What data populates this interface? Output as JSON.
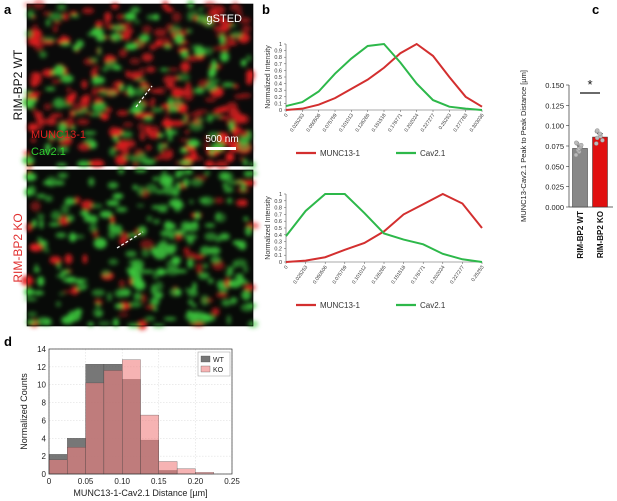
{
  "panels": {
    "a": {
      "letter": "a",
      "mode_label": "gSTED",
      "wt_label": "RIM-BP2 WT",
      "ko_label": "RIM-BP2 KO",
      "channel1": "MUNC13-1",
      "channel2": "Cav2.1",
      "scalebar": "500 nm",
      "colors": {
        "munc": "#e02020",
        "cav": "#32cd32",
        "ko_label": "#e03030"
      }
    },
    "b": {
      "letter": "b"
    },
    "c": {
      "letter": "c"
    },
    "d": {
      "letter": "d"
    }
  },
  "chart_data": [
    {
      "id": "b-top",
      "type": "line",
      "ylabel": "Normalized Intensity",
      "x": [
        "0",
        "0.025253",
        "0.050506",
        "0.075759",
        "0.101013",
        "0.126265",
        "0.151518",
        "0.176771",
        "0.202024",
        "0.227277",
        "0.25253",
        "0.277783",
        "0.303036"
      ],
      "ylim": [
        0,
        1
      ],
      "yticks": [
        "0",
        "0.1",
        "0.2",
        "0.3",
        "0.4",
        "0.5",
        "0.6",
        "0.7",
        "0.8",
        "0.9",
        "1"
      ],
      "series": [
        {
          "name": "MUNC13-1",
          "color": "#d32f2f",
          "values": [
            0,
            0.02,
            0.08,
            0.18,
            0.32,
            0.46,
            0.64,
            0.86,
            1.0,
            0.82,
            0.5,
            0.2,
            0.05
          ]
        },
        {
          "name": "Cav2.1",
          "color": "#2db84a",
          "values": [
            0.06,
            0.12,
            0.28,
            0.55,
            0.78,
            0.97,
            1.0,
            0.72,
            0.4,
            0.15,
            0.05,
            0.02,
            0
          ]
        }
      ],
      "legend": "bottom"
    },
    {
      "id": "b-bottom",
      "type": "line",
      "ylabel": "Normalized Intensity",
      "x": [
        "0",
        "0.025253",
        "0.050506",
        "0.075759",
        "0.101012",
        "0.126265",
        "0.151518",
        "0.176771",
        "0.202024",
        "0.227277",
        "0.25253"
      ],
      "ylim": [
        0,
        1
      ],
      "yticks": [
        "0",
        "0.1",
        "0.2",
        "0.3",
        "0.4",
        "0.5",
        "0.6",
        "0.7",
        "0.8",
        "0.9",
        "1"
      ],
      "series": [
        {
          "name": "MUNC13-1",
          "color": "#d32f2f",
          "values": [
            0,
            0.02,
            0.07,
            0.18,
            0.28,
            0.45,
            0.7,
            0.85,
            1.0,
            0.86,
            0.5
          ]
        },
        {
          "name": "Cav2.1",
          "color": "#2db84a",
          "values": [
            0.38,
            0.75,
            1.0,
            1.0,
            0.72,
            0.42,
            0.33,
            0.26,
            0.12,
            0.04,
            0
          ]
        }
      ],
      "legend": "bottom"
    },
    {
      "id": "c",
      "type": "bar",
      "ylabel": "MUNC13-Cav2.1 Peak to Peak Distance [µm]",
      "categories": [
        "RIM-BP2 WT",
        "RIM-BP2 KO"
      ],
      "values": [
        0.072,
        0.086
      ],
      "errors": [
        0.003,
        0.004
      ],
      "colors": [
        "#888888",
        "#e01010"
      ],
      "ylim": [
        0,
        0.15
      ],
      "yticks": [
        "0.000",
        "0.025",
        "0.050",
        "0.075",
        "0.100",
        "0.125",
        "0.150"
      ],
      "points": [
        [
          0.064,
          0.068,
          0.07,
          0.072,
          0.074,
          0.076,
          0.078,
          0.079
        ],
        [
          0.078,
          0.082,
          0.085,
          0.087,
          0.09,
          0.093,
          0.094
        ]
      ],
      "annotation": "*"
    },
    {
      "id": "d",
      "type": "bar",
      "subtype": "histogram",
      "xlabel": "MUNC13-1-Cav2.1 Distance [µm]",
      "ylabel": "Normalized Counts",
      "bin_edges": [
        0,
        0.025,
        0.05,
        0.075,
        0.1,
        0.125,
        0.15,
        0.175,
        0.2,
        0.225,
        0.25
      ],
      "xlim": [
        0,
        0.25
      ],
      "ylim": [
        0,
        14
      ],
      "xticks": [
        "0",
        "0.05",
        "0.10",
        "0.15",
        "0.20",
        "0.25"
      ],
      "yticks": [
        "0",
        "2",
        "4",
        "6",
        "8",
        "10",
        "12",
        "14"
      ],
      "grid": true,
      "legend": "top-right",
      "series": [
        {
          "name": "WT",
          "color": "#555555",
          "values": [
            2.2,
            4.0,
            12.3,
            12.3,
            10.6,
            3.8,
            0.4,
            0,
            0,
            0
          ]
        },
        {
          "name": "KO",
          "color": "#f08080",
          "values": [
            1.6,
            3.0,
            10.2,
            11.6,
            12.8,
            6.6,
            1.4,
            0.6,
            0.2,
            0
          ]
        }
      ]
    }
  ]
}
